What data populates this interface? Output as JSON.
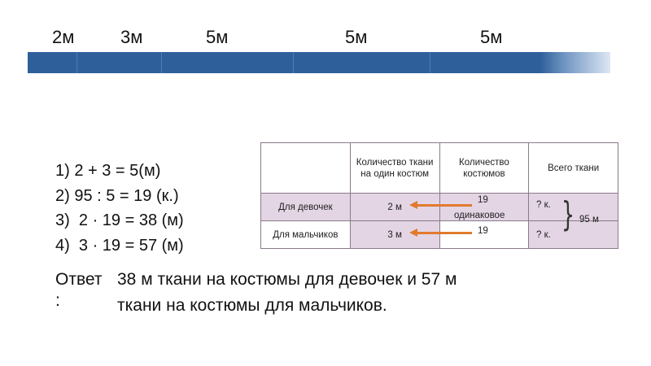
{
  "segments": [
    "2м",
    "3м",
    "5м",
    "5м",
    "5м"
  ],
  "solution_lines": [
    "1) 2 + 3 = 5(м)",
    "2) 95 : 5 = 19 (к.)",
    "3)  2 · 19 = 38 (м)",
    "4)  3 · 19 = 57 (м)"
  ],
  "answer": {
    "label": "Ответ",
    "colon": ":",
    "text": "38 м ткани на костюмы для девочек и 57 м ткани на костюмы для мальчиков."
  },
  "table": {
    "headers": [
      "",
      "Количество ткани на один костюм",
      "Количество костюмов",
      "Всего ткани"
    ],
    "rows": [
      {
        "label": "Для девочек",
        "per_suit": "2 м",
        "suits": "19",
        "total": "? к."
      },
      {
        "label": "Для мальчиков",
        "per_suit": "3 м",
        "suits": "19",
        "total": "? к."
      }
    ],
    "same_label": "одинаковое",
    "sum_total": "95 м"
  },
  "colors": {
    "bar": "#2f5f9a",
    "arrow": "#e07a2e",
    "row_fill": "#e3d5e4"
  }
}
